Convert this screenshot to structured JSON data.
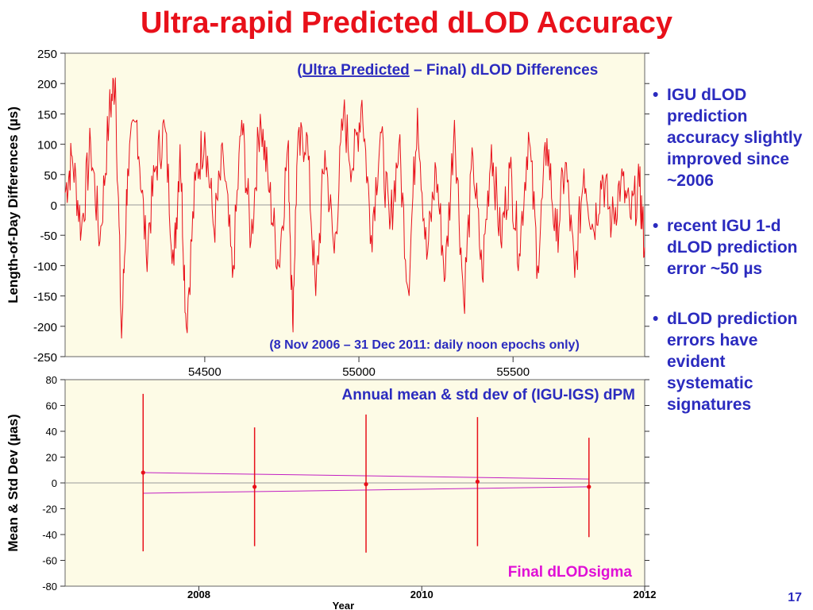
{
  "slide": {
    "title": "Ultra-rapid Predicted dLOD Accuracy",
    "page_number": "17"
  },
  "bullets": [
    "IGU dLOD prediction accuracy slightly improved since ~2006",
    "recent IGU 1-d dLOD prediction error ~50 µs",
    "dLOD prediction errors have evident systematic signatures"
  ],
  "colors": {
    "title": "#e8101a",
    "text_blue": "#2b2bbf",
    "plot_bg": "#fdfbe6",
    "series_red": "#e8101a",
    "trend_magenta": "#c21fc2",
    "sigma_magenta": "#e010d6"
  },
  "chart_data": [
    {
      "type": "line",
      "title_parts": [
        "(",
        "Ultra Predicted",
        " – Final) dLOD Differences"
      ],
      "annotation": "(8 Nov 2006 – 31 Dec 2011: daily noon epochs only)",
      "xlabel": "",
      "ylabel": "Length-of-Day Differences (µs)",
      "xlim": [
        54047,
        55927
      ],
      "ylim": [
        -250,
        250
      ],
      "xticks": [
        54500,
        55000,
        55500
      ],
      "yticks": [
        250,
        200,
        150,
        100,
        50,
        0,
        -50,
        -100,
        -150,
        -200,
        -250
      ],
      "grid": false,
      "series": [
        {
          "x": [
            54047,
            54070,
            54100,
            54130,
            54160,
            54190,
            54210,
            54230,
            54250,
            54280,
            54310,
            54340,
            54370,
            54400,
            54420,
            54440,
            54470,
            54500,
            54530,
            54560,
            54590,
            54620,
            54650,
            54680,
            54710,
            54740,
            54770,
            54785,
            54800,
            54830,
            54860,
            54890,
            54920,
            54950,
            54980,
            55010,
            55040,
            55070,
            55100,
            55130,
            55160,
            55190,
            55220,
            55250,
            55280,
            55310,
            55340,
            55370,
            55400,
            55430,
            55460,
            55490,
            55520,
            55550,
            55580,
            55610,
            55640,
            55670,
            55700,
            55730,
            55760,
            55790,
            55820,
            55850,
            55880,
            55910,
            55927
          ],
          "y": [
            20,
            80,
            -40,
            100,
            -60,
            150,
            210,
            -220,
            60,
            140,
            -80,
            60,
            130,
            -100,
            100,
            -200,
            40,
            120,
            -40,
            80,
            -120,
            140,
            -60,
            150,
            20,
            -100,
            100,
            -195,
            80,
            120,
            -150,
            90,
            -80,
            150,
            60,
            173,
            -50,
            120,
            -40,
            100,
            -140,
            160,
            -90,
            60,
            -120,
            140,
            -160,
            80,
            -120,
            100,
            -60,
            60,
            -80,
            120,
            -100,
            110,
            -60,
            70,
            -120,
            60,
            -40,
            50,
            -30,
            40,
            -20,
            30,
            -70
          ]
        }
      ]
    },
    {
      "type": "scatter",
      "title": "Annual mean & std dev of (IGU-IGS) dPM",
      "annotation": "Final dLODsigma",
      "xlabel": "Year",
      "ylabel": "Mean & Std Dev (µas)",
      "xlim": [
        2006.8,
        2012
      ],
      "ylim": [
        -80,
        80
      ],
      "xticks": [
        2008,
        2010,
        2012
      ],
      "yticks": [
        80,
        60,
        40,
        20,
        0,
        -20,
        -40,
        -60,
        -80
      ],
      "grid": false,
      "series": [
        {
          "points": [
            {
              "x": 2007.5,
              "mean": 8,
              "low": -53,
              "high": 69
            },
            {
              "x": 2008.5,
              "mean": -3,
              "low": -49,
              "high": 43
            },
            {
              "x": 2009.5,
              "mean": -1,
              "low": -54,
              "high": 53
            },
            {
              "x": 2010.5,
              "mean": 1,
              "low": -49,
              "high": 51
            },
            {
              "x": 2011.5,
              "mean": -3,
              "low": -42,
              "high": 35
            }
          ]
        },
        {
          "trend_upper": {
            "x": [
              2007.5,
              2011.5
            ],
            "y": [
              8,
              3
            ]
          },
          "trend_lower": {
            "x": [
              2007.5,
              2011.5
            ],
            "y": [
              -8,
              -3
            ]
          }
        }
      ]
    }
  ]
}
